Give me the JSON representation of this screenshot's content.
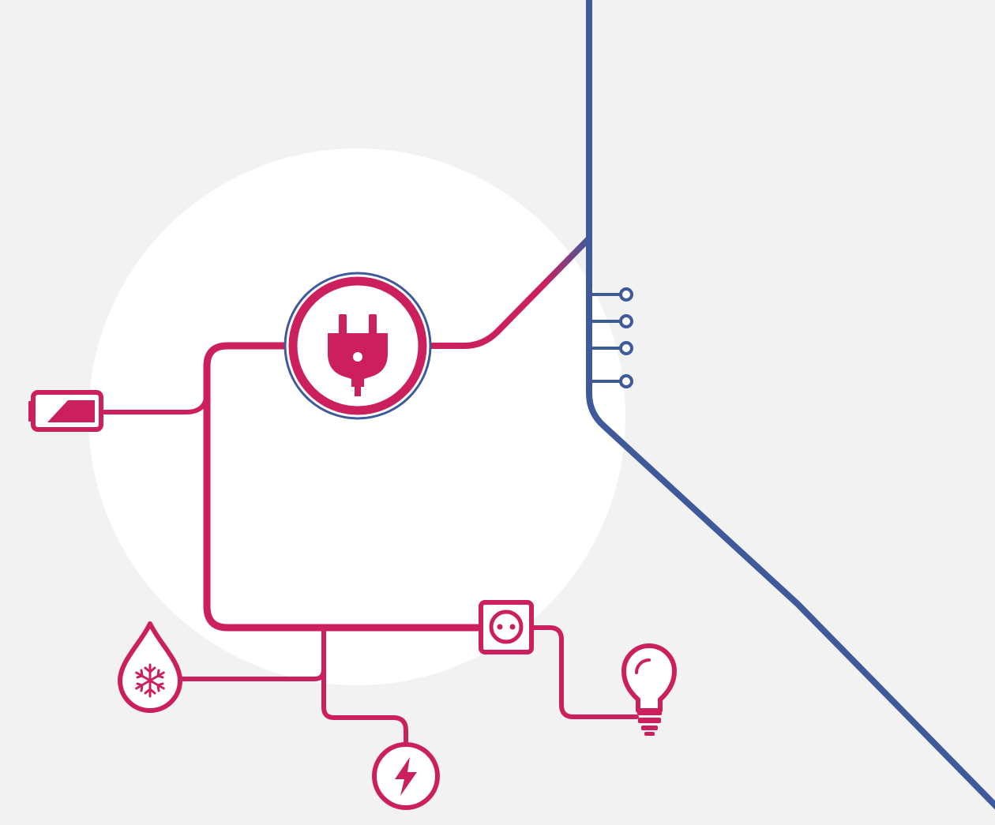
{
  "colors": {
    "background": "#f2f2f2",
    "halo": "#ffffff",
    "accent": "#cc1f5e",
    "grid_line": "#3f5a9a"
  },
  "nodes": [
    {
      "name": "plug-icon",
      "role": "central power source"
    },
    {
      "name": "battery-icon",
      "role": "battery"
    },
    {
      "name": "snowflake-drop-icon",
      "role": "cooling"
    },
    {
      "name": "lightning-icon",
      "role": "electricity"
    },
    {
      "name": "socket-icon",
      "role": "wall outlet"
    },
    {
      "name": "lightbulb-icon",
      "role": "lighting"
    }
  ],
  "connector_terminals": 4
}
